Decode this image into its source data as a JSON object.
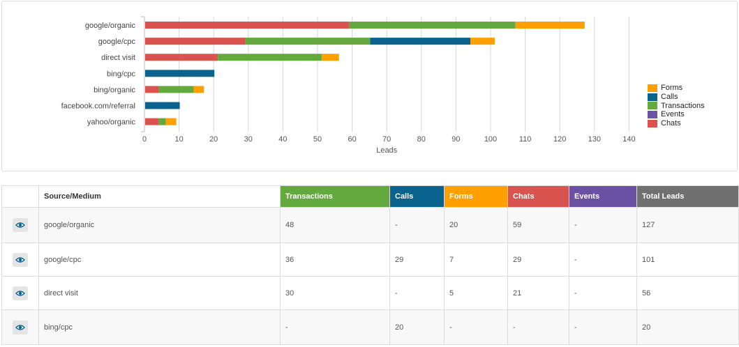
{
  "chart_data": {
    "type": "bar",
    "orientation": "horizontal",
    "stacked": true,
    "categories": [
      "google/organic",
      "google/cpc",
      "direct visit",
      "bing/cpc",
      "bing/organic",
      "facebook.com/referral",
      "yahoo/organic"
    ],
    "series": [
      {
        "name": "Chats",
        "color": "#d9534f",
        "values": [
          59,
          29,
          21,
          0,
          4,
          0,
          4
        ]
      },
      {
        "name": "Transactions",
        "color": "#64a93e",
        "values": [
          48,
          36,
          30,
          0,
          10,
          0,
          2
        ]
      },
      {
        "name": "Calls",
        "color": "#0a628f",
        "values": [
          0,
          29,
          0,
          20,
          0,
          10,
          0
        ]
      },
      {
        "name": "Forms",
        "color": "#ffa000",
        "values": [
          20,
          7,
          5,
          0,
          3,
          0,
          3
        ]
      },
      {
        "name": "Events",
        "color": "#6a51a3",
        "values": [
          0,
          0,
          0,
          0,
          0,
          0,
          0
        ]
      }
    ],
    "xlabel": "Leads",
    "ylabel": "",
    "xlim": [
      0,
      140
    ],
    "xticks": [
      0,
      10,
      20,
      30,
      40,
      50,
      60,
      70,
      80,
      90,
      100,
      110,
      120,
      130,
      140
    ],
    "grid": true,
    "legend_position": "right",
    "legend_order": [
      "Forms",
      "Calls",
      "Transactions",
      "Events",
      "Chats"
    ]
  },
  "legend": [
    {
      "label": "Forms",
      "color": "#ffa000"
    },
    {
      "label": "Calls",
      "color": "#0a628f"
    },
    {
      "label": "Transactions",
      "color": "#64a93e"
    },
    {
      "label": "Events",
      "color": "#6a51a3"
    },
    {
      "label": "Chats",
      "color": "#d9534f"
    }
  ],
  "table": {
    "headers": {
      "source": "Source/Medium",
      "transactions": "Transactions",
      "calls": "Calls",
      "forms": "Forms",
      "chats": "Chats",
      "events": "Events",
      "total": "Total Leads"
    },
    "rows": [
      {
        "source": "google/organic",
        "transactions": "48",
        "calls": "-",
        "forms": "20",
        "chats": "59",
        "events": "-",
        "total": "127"
      },
      {
        "source": "google/cpc",
        "transactions": "36",
        "calls": "29",
        "forms": "7",
        "chats": "29",
        "events": "-",
        "total": "101"
      },
      {
        "source": "direct visit",
        "transactions": "30",
        "calls": "-",
        "forms": "5",
        "chats": "21",
        "events": "-",
        "total": "56"
      },
      {
        "source": "bing/cpc",
        "transactions": "-",
        "calls": "20",
        "forms": "-",
        "chats": "-",
        "events": "-",
        "total": "20"
      }
    ]
  }
}
